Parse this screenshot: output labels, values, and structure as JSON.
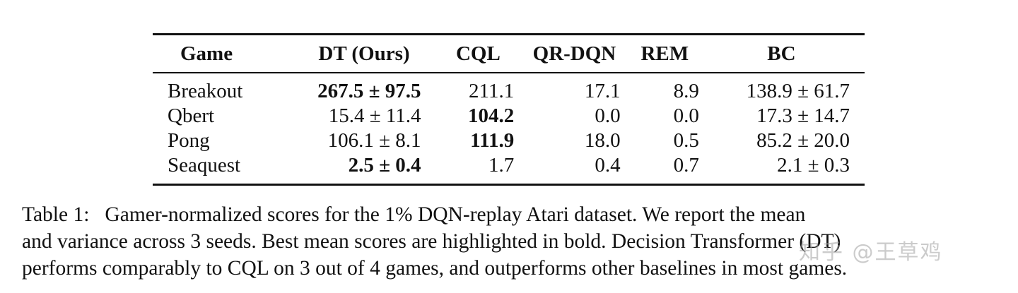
{
  "table": {
    "headers": [
      "Game",
      "DT (Ours)",
      "CQL",
      "QR-DQN",
      "REM",
      "BC"
    ],
    "rows": [
      {
        "game": "Breakout",
        "dt": "267.5 ± 97.5",
        "dt_bold": true,
        "cql": "211.1",
        "cql_bold": false,
        "qrdqn": "17.1",
        "rem": "8.9",
        "bc": "138.9 ± 61.7"
      },
      {
        "game": "Qbert",
        "dt": "15.4 ± 11.4",
        "dt_bold": false,
        "cql": "104.2",
        "cql_bold": true,
        "qrdqn": "0.0",
        "rem": "0.0",
        "bc": "17.3 ± 14.7"
      },
      {
        "game": "Pong",
        "dt": "106.1 ± 8.1",
        "dt_bold": false,
        "cql": "111.9",
        "cql_bold": true,
        "qrdqn": "18.0",
        "rem": "0.5",
        "bc": "85.2 ± 20.0"
      },
      {
        "game": "Seaquest",
        "dt": "2.5 ± 0.4",
        "dt_bold": true,
        "cql": "1.7",
        "cql_bold": false,
        "qrdqn": "0.4",
        "rem": "0.7",
        "bc": "2.1 ± 0.3"
      }
    ]
  },
  "caption": {
    "label": "Table 1:",
    "line1": "Gamer-normalized scores for the 1% DQN-replay Atari dataset.  We report the mean",
    "line2": "and variance across 3 seeds. Best mean scores are highlighted in bold. Decision Transformer (DT)",
    "line3": "performs comparably to CQL on 3 out of 4 games, and outperforms other baselines in most games."
  },
  "watermark": "知乎 @王草鸡"
}
